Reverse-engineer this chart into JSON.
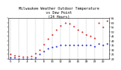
{
  "title": "Milwaukee Weather Outdoor Temperature\nvs Dew Point\n(24 Hours)",
  "title_fontsize": 3.8,
  "temp_color": "#cc0000",
  "dew_color": "#0000cc",
  "background_color": "#ffffff",
  "grid_color": "#888888",
  "tick_fontsize": 2.8,
  "hours": [
    0,
    1,
    2,
    3,
    4,
    5,
    6,
    7,
    8,
    9,
    10,
    11,
    12,
    13,
    14,
    15,
    16,
    17,
    18,
    19,
    20,
    21,
    22,
    23
  ],
  "temp": [
    25,
    24,
    23,
    22,
    22,
    23,
    26,
    30,
    36,
    42,
    47,
    52,
    57,
    60,
    59,
    56,
    52,
    50,
    47,
    45,
    43,
    60,
    55,
    62
  ],
  "dew": [
    21,
    21,
    20,
    20,
    20,
    20,
    21,
    25,
    28,
    31,
    33,
    34,
    35,
    35,
    35,
    35,
    35,
    35,
    35,
    35,
    34,
    37,
    35,
    37
  ],
  "ylim": [
    20,
    65
  ],
  "yticks": [
    20,
    25,
    30,
    35,
    40,
    45,
    50,
    55,
    60,
    65
  ],
  "xlim": [
    -0.5,
    23.5
  ],
  "xticks": [
    0,
    2,
    4,
    6,
    8,
    10,
    12,
    14,
    16,
    18,
    20,
    22
  ],
  "xtick_labels": [
    "0",
    "2",
    "4",
    "6",
    "8",
    "10",
    "12",
    "14",
    "16",
    "18",
    "20",
    "22"
  ],
  "ytick_labels": [
    "20",
    "25",
    "30",
    "35",
    "40",
    "45",
    "50",
    "55",
    "60",
    "65"
  ],
  "vgrid_positions": [
    0,
    2,
    4,
    6,
    8,
    10,
    12,
    14,
    16,
    18,
    20,
    22
  ],
  "marker_size": 1.0,
  "dot_linewidth": 0.5
}
